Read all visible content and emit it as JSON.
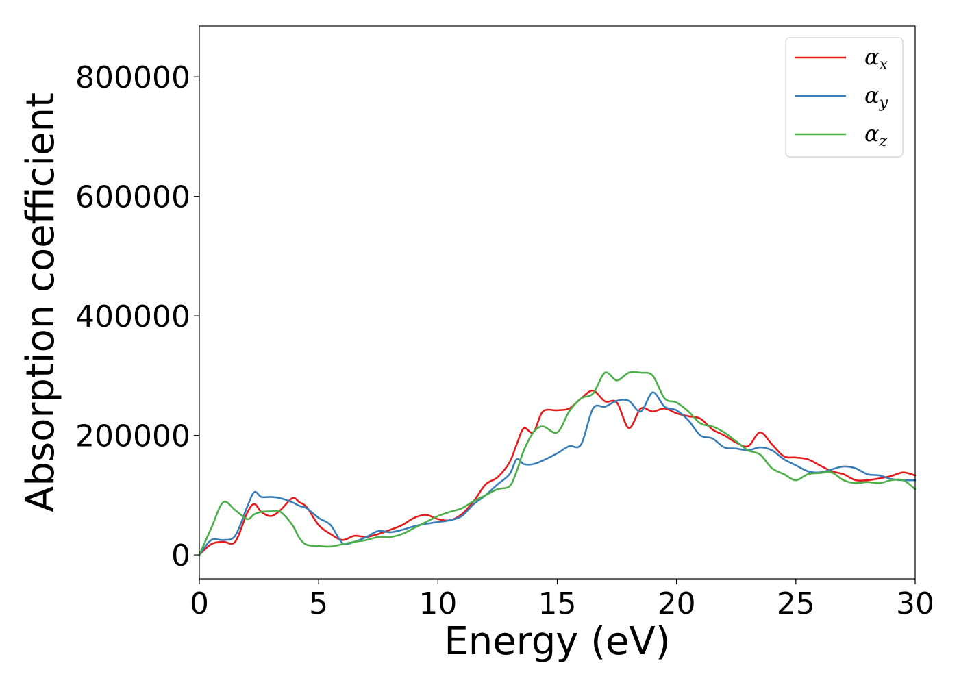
{
  "chart_data": {
    "type": "line",
    "title": "",
    "xlabel": "Energy (eV)",
    "ylabel": "Absorption coefficient",
    "xlim": [
      0,
      30
    ],
    "ylim": [
      -40000,
      885000
    ],
    "xticks": [
      0,
      5,
      10,
      15,
      20,
      25,
      30
    ],
    "xtick_labels": [
      "0",
      "5",
      "10",
      "15",
      "20",
      "25",
      "30"
    ],
    "yticks": [
      0,
      200000,
      400000,
      600000,
      800000
    ],
    "ytick_labels": [
      "0",
      "200000",
      "400000",
      "600000",
      "800000"
    ],
    "grid": false,
    "legend_position": "top-right",
    "series": [
      {
        "name": "α",
        "subscript": "x",
        "color": "#e41a1c",
        "x": [
          0,
          0.5,
          1,
          1.5,
          2,
          2.3,
          2.6,
          3,
          3.4,
          3.9,
          4.2,
          4.5,
          5,
          5.5,
          6,
          6.5,
          7,
          7.5,
          8,
          8.5,
          9,
          9.5,
          10,
          10.5,
          11,
          11.5,
          12,
          12.5,
          13,
          13.3,
          13.6,
          14,
          14.4,
          15,
          15.5,
          16,
          16.5,
          17,
          17.5,
          18,
          18.5,
          19,
          19.5,
          20,
          20.5,
          21,
          21.5,
          22,
          22.5,
          23,
          23.5,
          24,
          24.5,
          25,
          25.5,
          26,
          26.5,
          27,
          27.5,
          28,
          28.5,
          29,
          29.5,
          30
        ],
        "y": [
          0,
          18000,
          22000,
          22000,
          70000,
          85000,
          72000,
          65000,
          75000,
          95000,
          88000,
          80000,
          50000,
          35000,
          25000,
          32000,
          30000,
          35000,
          42000,
          50000,
          62000,
          67000,
          60000,
          58000,
          68000,
          90000,
          118000,
          130000,
          155000,
          185000,
          212000,
          205000,
          240000,
          242000,
          245000,
          262000,
          275000,
          257000,
          255000,
          212000,
          245000,
          240000,
          245000,
          237000,
          232000,
          228000,
          210000,
          200000,
          188000,
          182000,
          205000,
          185000,
          165000,
          163000,
          160000,
          150000,
          140000,
          135000,
          125000,
          125000,
          128000,
          132000,
          138000,
          133000
        ]
      },
      {
        "name": "α",
        "subscript": "y",
        "color": "#377eb8",
        "x": [
          0,
          0.5,
          1,
          1.5,
          2,
          2.3,
          2.6,
          3,
          3.4,
          3.9,
          4.2,
          4.5,
          5,
          5.5,
          6,
          6.5,
          7,
          7.5,
          8,
          8.5,
          9,
          9.5,
          10,
          10.5,
          11,
          11.5,
          12,
          12.5,
          13,
          13.3,
          13.6,
          14,
          14.4,
          15,
          15.5,
          16,
          16.5,
          17,
          17.5,
          18,
          18.5,
          19,
          19.5,
          20,
          20.5,
          21,
          21.5,
          22,
          22.5,
          23,
          23.5,
          24,
          24.5,
          25,
          25.5,
          26,
          26.5,
          27,
          27.5,
          28,
          28.5,
          29,
          29.5,
          30
        ],
        "y": [
          0,
          25000,
          25000,
          32000,
          80000,
          105000,
          97000,
          97000,
          95000,
          88000,
          82000,
          78000,
          62000,
          50000,
          20000,
          22000,
          30000,
          40000,
          38000,
          42000,
          48000,
          52000,
          55000,
          58000,
          65000,
          85000,
          100000,
          118000,
          135000,
          160000,
          152000,
          152000,
          158000,
          170000,
          182000,
          185000,
          245000,
          248000,
          258000,
          258000,
          240000,
          272000,
          248000,
          242000,
          225000,
          200000,
          195000,
          180000,
          178000,
          175000,
          180000,
          175000,
          160000,
          150000,
          140000,
          138000,
          143000,
          148000,
          145000,
          135000,
          133000,
          127000,
          125000,
          125000
        ]
      },
      {
        "name": "α",
        "subscript": "z",
        "color": "#4daf4a",
        "x": [
          0,
          0.5,
          1,
          1.5,
          2,
          2.3,
          2.6,
          3,
          3.4,
          3.9,
          4.2,
          4.5,
          5,
          5.5,
          6,
          6.5,
          7,
          7.5,
          8,
          8.5,
          9,
          9.5,
          10,
          10.5,
          11,
          11.5,
          12,
          12.5,
          13,
          13.3,
          13.6,
          14,
          14.4,
          15,
          15.5,
          16,
          16.5,
          17,
          17.5,
          18,
          18.5,
          19,
          19.5,
          20,
          20.5,
          21,
          21.5,
          22,
          22.5,
          23,
          23.5,
          24,
          24.5,
          25,
          25.5,
          26,
          26.5,
          27,
          27.5,
          28,
          28.5,
          29,
          29.5,
          30
        ],
        "y": [
          0,
          45000,
          88000,
          75000,
          60000,
          68000,
          72000,
          73000,
          72000,
          50000,
          28000,
          17000,
          15000,
          14000,
          18000,
          22000,
          25000,
          30000,
          30000,
          35000,
          45000,
          55000,
          65000,
          72000,
          78000,
          90000,
          100000,
          110000,
          115000,
          140000,
          175000,
          205000,
          215000,
          205000,
          240000,
          262000,
          270000,
          305000,
          292000,
          305000,
          305000,
          300000,
          262000,
          255000,
          240000,
          220000,
          215000,
          205000,
          190000,
          175000,
          168000,
          145000,
          135000,
          125000,
          135000,
          137000,
          138000,
          125000,
          120000,
          122000,
          120000,
          125000,
          125000,
          110000
        ]
      }
    ]
  }
}
